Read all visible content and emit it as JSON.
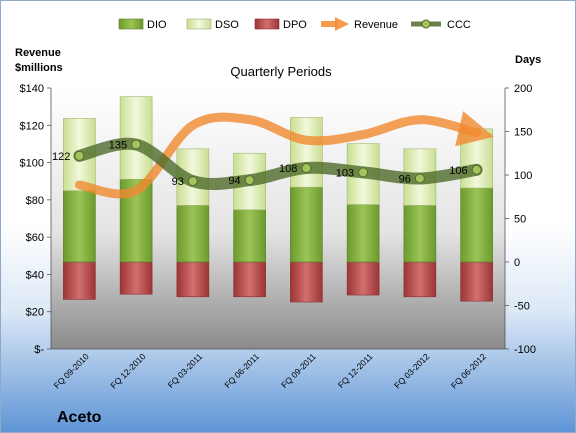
{
  "chart_data": {
    "type": "bar",
    "title": "Quarterly Periods",
    "company": "Aceto",
    "left_axis_title": [
      "Revenue",
      "$millions"
    ],
    "right_axis_title": "Days",
    "left_ticks": [
      "$140",
      "$120",
      "$100",
      "$80",
      "$60",
      "$40",
      "$20",
      "$-"
    ],
    "left_ylim": [
      0,
      140
    ],
    "right_ticks": [
      "200",
      "150",
      "100",
      "50",
      "0",
      "-50",
      "-100"
    ],
    "right_ylim": [
      -100,
      200
    ],
    "categories": [
      "FQ 09-2010",
      "FQ 12-2010",
      "FQ 03-2011",
      "FQ 06-2011",
      "FQ 09-2011",
      "FQ 12-2011",
      "FQ 03-2012",
      "FQ 06-2012"
    ],
    "legend": [
      "DIO",
      "DSO",
      "DPO",
      "Revenue",
      "CCC"
    ],
    "series": [
      {
        "name": "DIO",
        "axis": "days",
        "values": [
          82,
          95,
          65,
          60,
          86,
          66,
          65,
          85
        ]
      },
      {
        "name": "DSO",
        "axis": "days",
        "values": [
          83,
          95,
          65,
          65,
          80,
          70,
          65,
          68
        ]
      },
      {
        "name": "DPO",
        "axis": "days",
        "values": [
          -43,
          -37,
          -40,
          -40,
          -46,
          -38,
          -40,
          -45
        ]
      },
      {
        "name": "Revenue",
        "axis": "revenue",
        "values": [
          88,
          85,
          120,
          123,
          112,
          115,
          123,
          116
        ]
      },
      {
        "name": "CCC",
        "axis": "days",
        "values": [
          122,
          135,
          93,
          94,
          108,
          103,
          96,
          106
        ]
      }
    ],
    "ccc_labels": [
      "122",
      "135",
      "93",
      "94",
      "108",
      "103",
      "96",
      "106"
    ],
    "colors": {
      "DIO": "#77a03c",
      "DSO": "#d6e8aa",
      "DPO": "#b04a4a",
      "Revenue": "#f08a2f",
      "CCC": "#4f6b2a"
    }
  }
}
